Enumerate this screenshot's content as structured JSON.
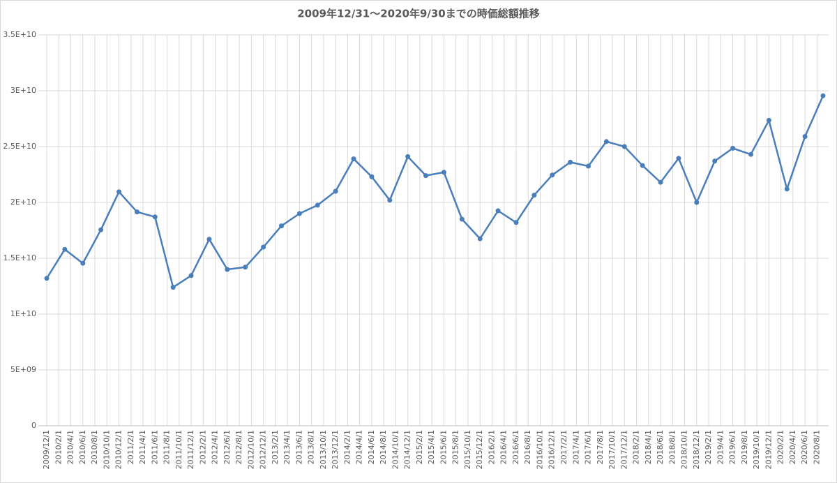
{
  "chart_data": {
    "type": "line",
    "title": "2009年12/31～2020年9/30までの時価総額推移",
    "x": [
      "2009/12/1",
      "2010/3/1",
      "2010/6/1",
      "2010/9/1",
      "2010/12/1",
      "2011/3/1",
      "2011/6/1",
      "2011/9/1",
      "2011/12/1",
      "2012/3/1",
      "2012/6/1",
      "2012/9/1",
      "2012/12/1",
      "2013/3/1",
      "2013/6/1",
      "2013/9/1",
      "2013/12/1",
      "2014/3/1",
      "2014/6/1",
      "2014/9/1",
      "2014/12/1",
      "2015/3/1",
      "2015/6/1",
      "2015/9/1",
      "2015/12/1",
      "2016/3/1",
      "2016/6/1",
      "2016/9/1",
      "2016/12/1",
      "2017/3/1",
      "2017/6/1",
      "2017/9/1",
      "2017/12/1",
      "2018/3/1",
      "2018/6/1",
      "2018/9/1",
      "2018/12/1",
      "2019/3/1",
      "2019/6/1",
      "2019/9/1",
      "2019/12/1",
      "2020/3/1",
      "2020/6/1",
      "2020/9/1"
    ],
    "series": [
      {
        "color": "#4a7ebb",
        "values": [
          13200000000,
          15800000000,
          14550000000,
          17550000000,
          20950000000,
          19150000000,
          18700000000,
          12400000000,
          13450000000,
          16700000000,
          14000000000,
          14200000000,
          16000000000,
          17900000000,
          19000000000,
          19750000000,
          21000000000,
          23900000000,
          22300000000,
          20200000000,
          24100000000,
          22400000000,
          22700000000,
          18500000000,
          16750000000,
          19250000000,
          18200000000,
          20650000000,
          22450000000,
          23600000000,
          23250000000,
          25450000000,
          25000000000,
          23300000000,
          21800000000,
          23950000000,
          20000000000,
          23700000000,
          24850000000,
          24300000000,
          27350000000,
          21200000000,
          25900000000,
          29550000000
        ]
      }
    ],
    "xlim": [
      "2009/12/1",
      "2020/9/1"
    ],
    "xticks": [
      "2009/12/1",
      "2010/2/1",
      "2010/4/1",
      "2010/6/1",
      "2010/8/1",
      "2010/10/1",
      "2010/12/1",
      "2011/2/1",
      "2011/4/1",
      "2011/6/1",
      "2011/8/1",
      "2011/10/1",
      "2011/12/1",
      "2012/2/1",
      "2012/4/1",
      "2012/6/1",
      "2012/8/1",
      "2012/10/1",
      "2012/12/1",
      "2013/2/1",
      "2013/4/1",
      "2013/6/1",
      "2013/8/1",
      "2013/10/1",
      "2013/12/1",
      "2014/2/1",
      "2014/4/1",
      "2014/6/1",
      "2014/8/1",
      "2014/10/1",
      "2014/12/1",
      "2015/2/1",
      "2015/4/1",
      "2015/6/1",
      "2015/8/1",
      "2015/10/1",
      "2015/12/1",
      "2016/2/1",
      "2016/4/1",
      "2016/6/1",
      "2016/8/1",
      "2016/10/1",
      "2016/12/1",
      "2017/2/1",
      "2017/4/1",
      "2017/6/1",
      "2017/8/1",
      "2017/10/1",
      "2017/12/1",
      "2018/2/1",
      "2018/4/1",
      "2018/6/1",
      "2018/8/1",
      "2018/10/1",
      "2018/12/1",
      "2019/2/1",
      "2019/4/1",
      "2019/6/1",
      "2019/8/1",
      "2019/10/1",
      "2019/12/1",
      "2020/2/1",
      "2020/4/1",
      "2020/6/1",
      "2020/8/1"
    ],
    "ylim": [
      0,
      35000000000
    ],
    "yticks": [
      0,
      {
        "value": 5000000000,
        "label": "5E+09"
      },
      {
        "value": 10000000000,
        "label": "1E+10"
      },
      {
        "value": 15000000000,
        "label": "1.5E+10"
      },
      {
        "value": 20000000000,
        "label": "2E+10"
      },
      {
        "value": 25000000000,
        "label": "2.5E+10"
      },
      {
        "value": 30000000000,
        "label": "3E+10"
      },
      {
        "value": 35000000000,
        "label": "3.5E+10"
      }
    ],
    "grid": true
  }
}
